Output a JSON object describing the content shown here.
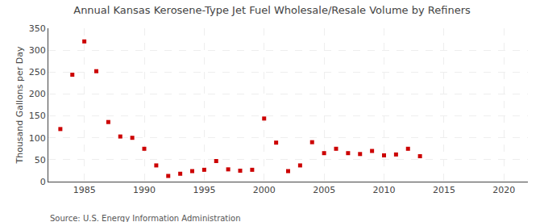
{
  "chart_data": {
    "type": "scatter",
    "title": "Annual Kansas Kerosene-Type Jet Fuel Wholesale/Resale Volume by Refiners",
    "ylabel": "Thousand Gallons per Day",
    "annotations": [
      "Source: U.S. Energy Information Administration"
    ],
    "x": [
      1983,
      1984,
      1985,
      1986,
      1987,
      1988,
      1989,
      1990,
      1991,
      1992,
      1993,
      1994,
      1995,
      1996,
      1997,
      1998,
      1999,
      2000,
      2001,
      2002,
      2003,
      2004,
      2005,
      2006,
      2007,
      2008,
      2009,
      2010,
      2011,
      2012,
      2013
    ],
    "values": [
      120,
      244,
      320,
      252,
      136,
      103,
      100,
      75,
      37,
      13,
      18,
      24,
      27,
      47,
      28,
      25,
      27,
      144,
      89,
      24,
      37,
      90,
      65,
      75,
      65,
      63,
      70,
      60,
      62,
      75,
      58
    ],
    "color": "#cc0000",
    "marker": "square",
    "xlim": [
      1982,
      2022
    ],
    "ylim": [
      0,
      350
    ],
    "xticks": [
      1985,
      1990,
      1995,
      2000,
      2005,
      2010,
      2015,
      2020
    ],
    "yticks": [
      0,
      50,
      100,
      150,
      200,
      250,
      300,
      350
    ],
    "grid": true
  }
}
